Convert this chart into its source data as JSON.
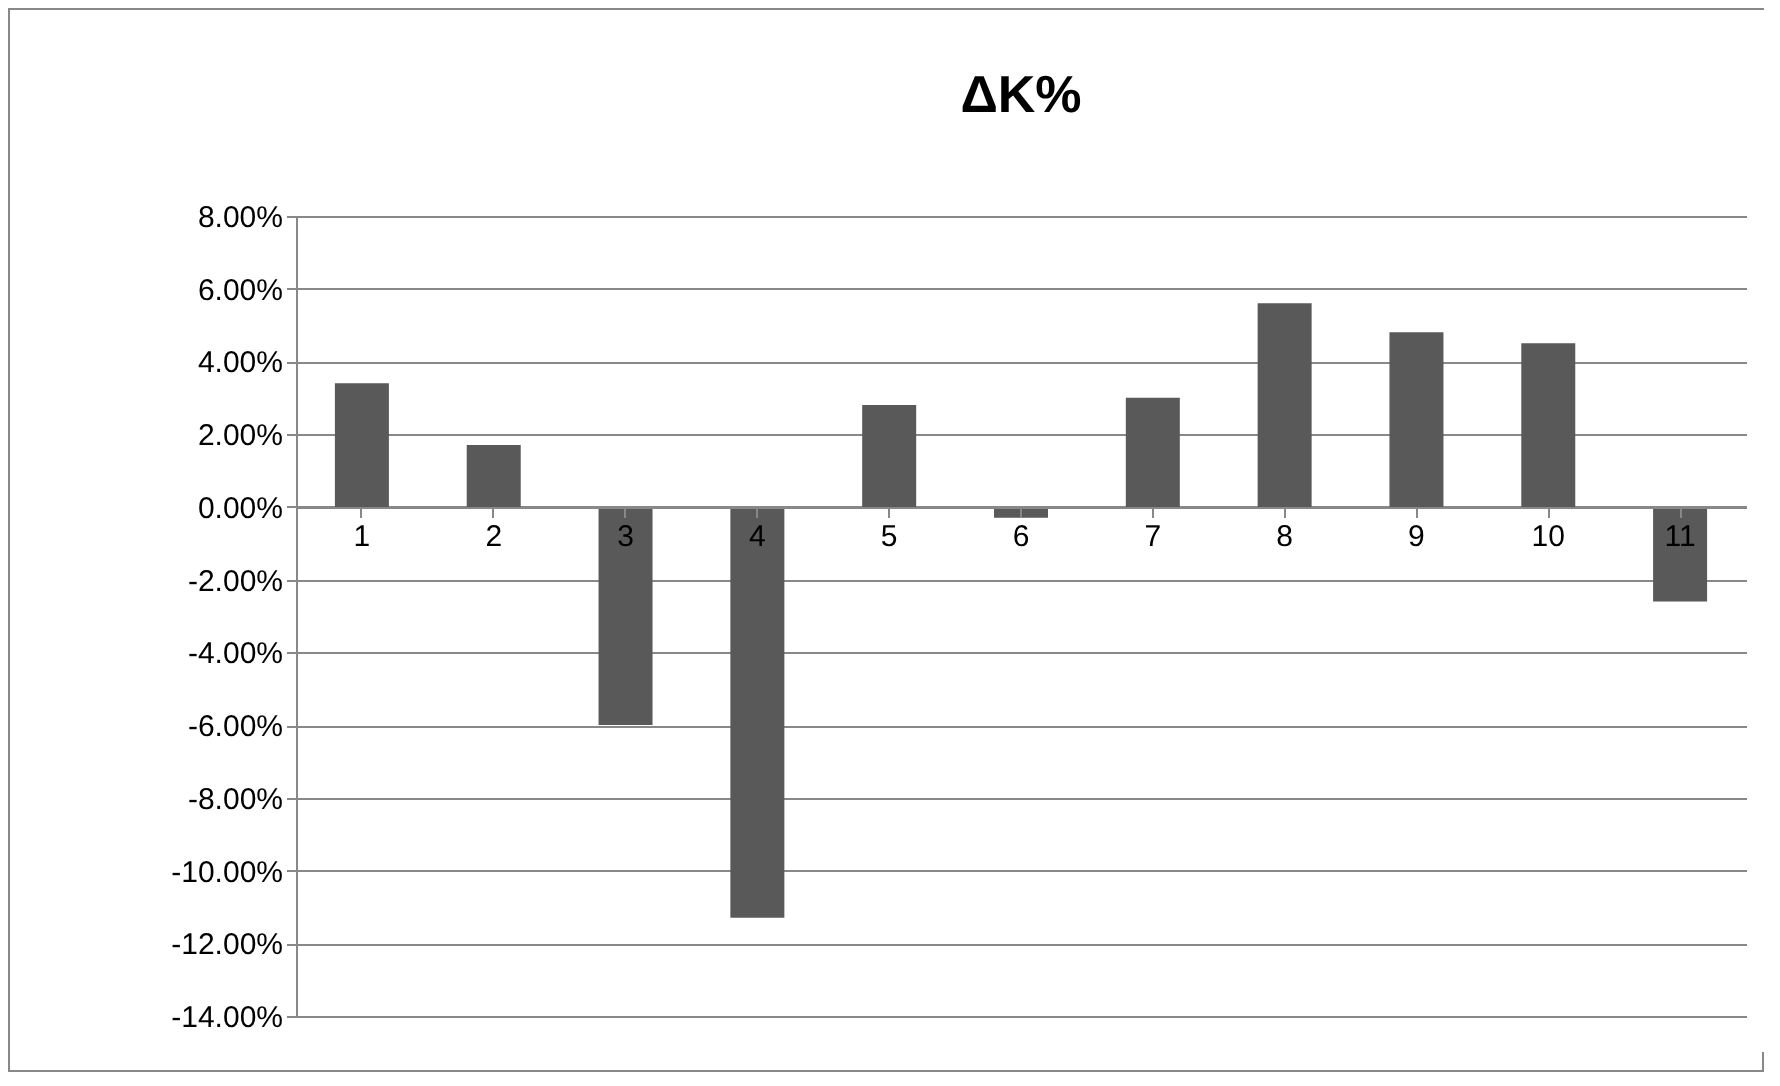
{
  "chart_data": {
    "type": "bar",
    "title": "ΔK%",
    "categories": [
      "1",
      "2",
      "3",
      "4",
      "5",
      "6",
      "7",
      "8",
      "9",
      "10",
      "11"
    ],
    "values": [
      3.4,
      1.7,
      -6.0,
      -11.3,
      2.8,
      -0.3,
      3.0,
      5.6,
      4.8,
      4.5,
      -2.6
    ],
    "color": "#595959",
    "ylim": [
      -14,
      8
    ],
    "yticks": [
      {
        "value": -14,
        "label": "-14.00%"
      },
      {
        "value": -12,
        "label": "-12.00%"
      },
      {
        "value": -10,
        "label": "-10.00%"
      },
      {
        "value": -8,
        "label": "-8.00%"
      },
      {
        "value": -6,
        "label": "-6.00%"
      },
      {
        "value": -4,
        "label": "-4.00%"
      },
      {
        "value": -2,
        "label": "-2.00%"
      },
      {
        "value": 0,
        "label": "0.00%"
      },
      {
        "value": 2,
        "label": "2.00%"
      },
      {
        "value": 4,
        "label": "4.00%"
      },
      {
        "value": 6,
        "label": "6.00%"
      },
      {
        "value": 8,
        "label": "8.00%"
      }
    ],
    "grid": "y"
  }
}
